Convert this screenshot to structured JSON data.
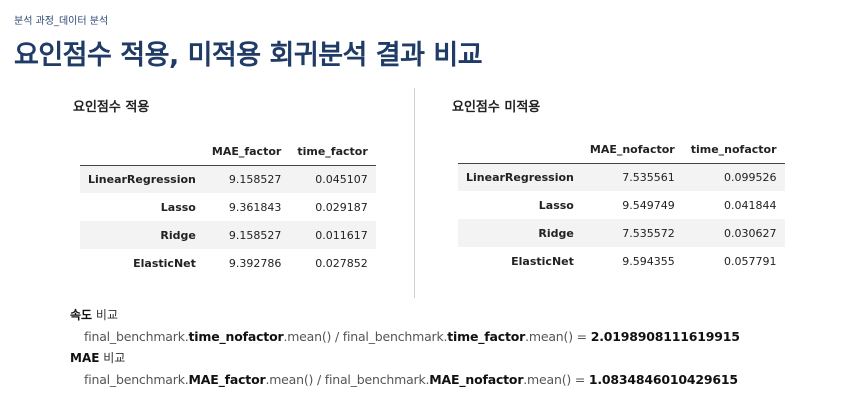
{
  "header": {
    "breadcrumb": "분석 과정_데이터 분석",
    "title": "요인점수 적용, 미적용 회귀분석 결과 비교"
  },
  "left_panel": {
    "title": "요인점수 적용",
    "columns": [
      "MAE_factor",
      "time_factor"
    ],
    "rows": [
      {
        "model": "LinearRegression",
        "mae": "9.158527",
        "time": "0.045107"
      },
      {
        "model": "Lasso",
        "mae": "9.361843",
        "time": "0.029187"
      },
      {
        "model": "Ridge",
        "mae": "9.158527",
        "time": "0.011617"
      },
      {
        "model": "ElasticNet",
        "mae": "9.392786",
        "time": "0.027852"
      }
    ]
  },
  "right_panel": {
    "title": "요인점수 미적용",
    "columns": [
      "MAE_nofactor",
      "time_nofactor"
    ],
    "rows": [
      {
        "model": "LinearRegression",
        "mae": "7.535561",
        "time": "0.099526"
      },
      {
        "model": "Lasso",
        "mae": "9.549749",
        "time": "0.041844"
      },
      {
        "model": "Ridge",
        "mae": "7.535572",
        "time": "0.030627"
      },
      {
        "model": "ElasticNet",
        "mae": "9.594355",
        "time": "0.057791"
      }
    ]
  },
  "speed_compare": {
    "label_bold": "속도",
    "label_rest": "비교",
    "f_p1": "final_benchmark.",
    "f_b1": "time_nofactor",
    "f_p2": ".mean() / final_benchmark.",
    "f_b2": "time_factor",
    "f_p3": ".mean() = ",
    "f_result": "2.0198908111619915"
  },
  "mae_compare": {
    "label_bold": "MAE",
    "label_rest": "비교",
    "f_p1": "final_benchmark.",
    "f_b1": "MAE_factor",
    "f_p2": ".mean() / final_benchmark.",
    "f_b2": "MAE_nofactor",
    "f_p3": ".mean() = ",
    "f_result": "1.0834846010429615"
  }
}
